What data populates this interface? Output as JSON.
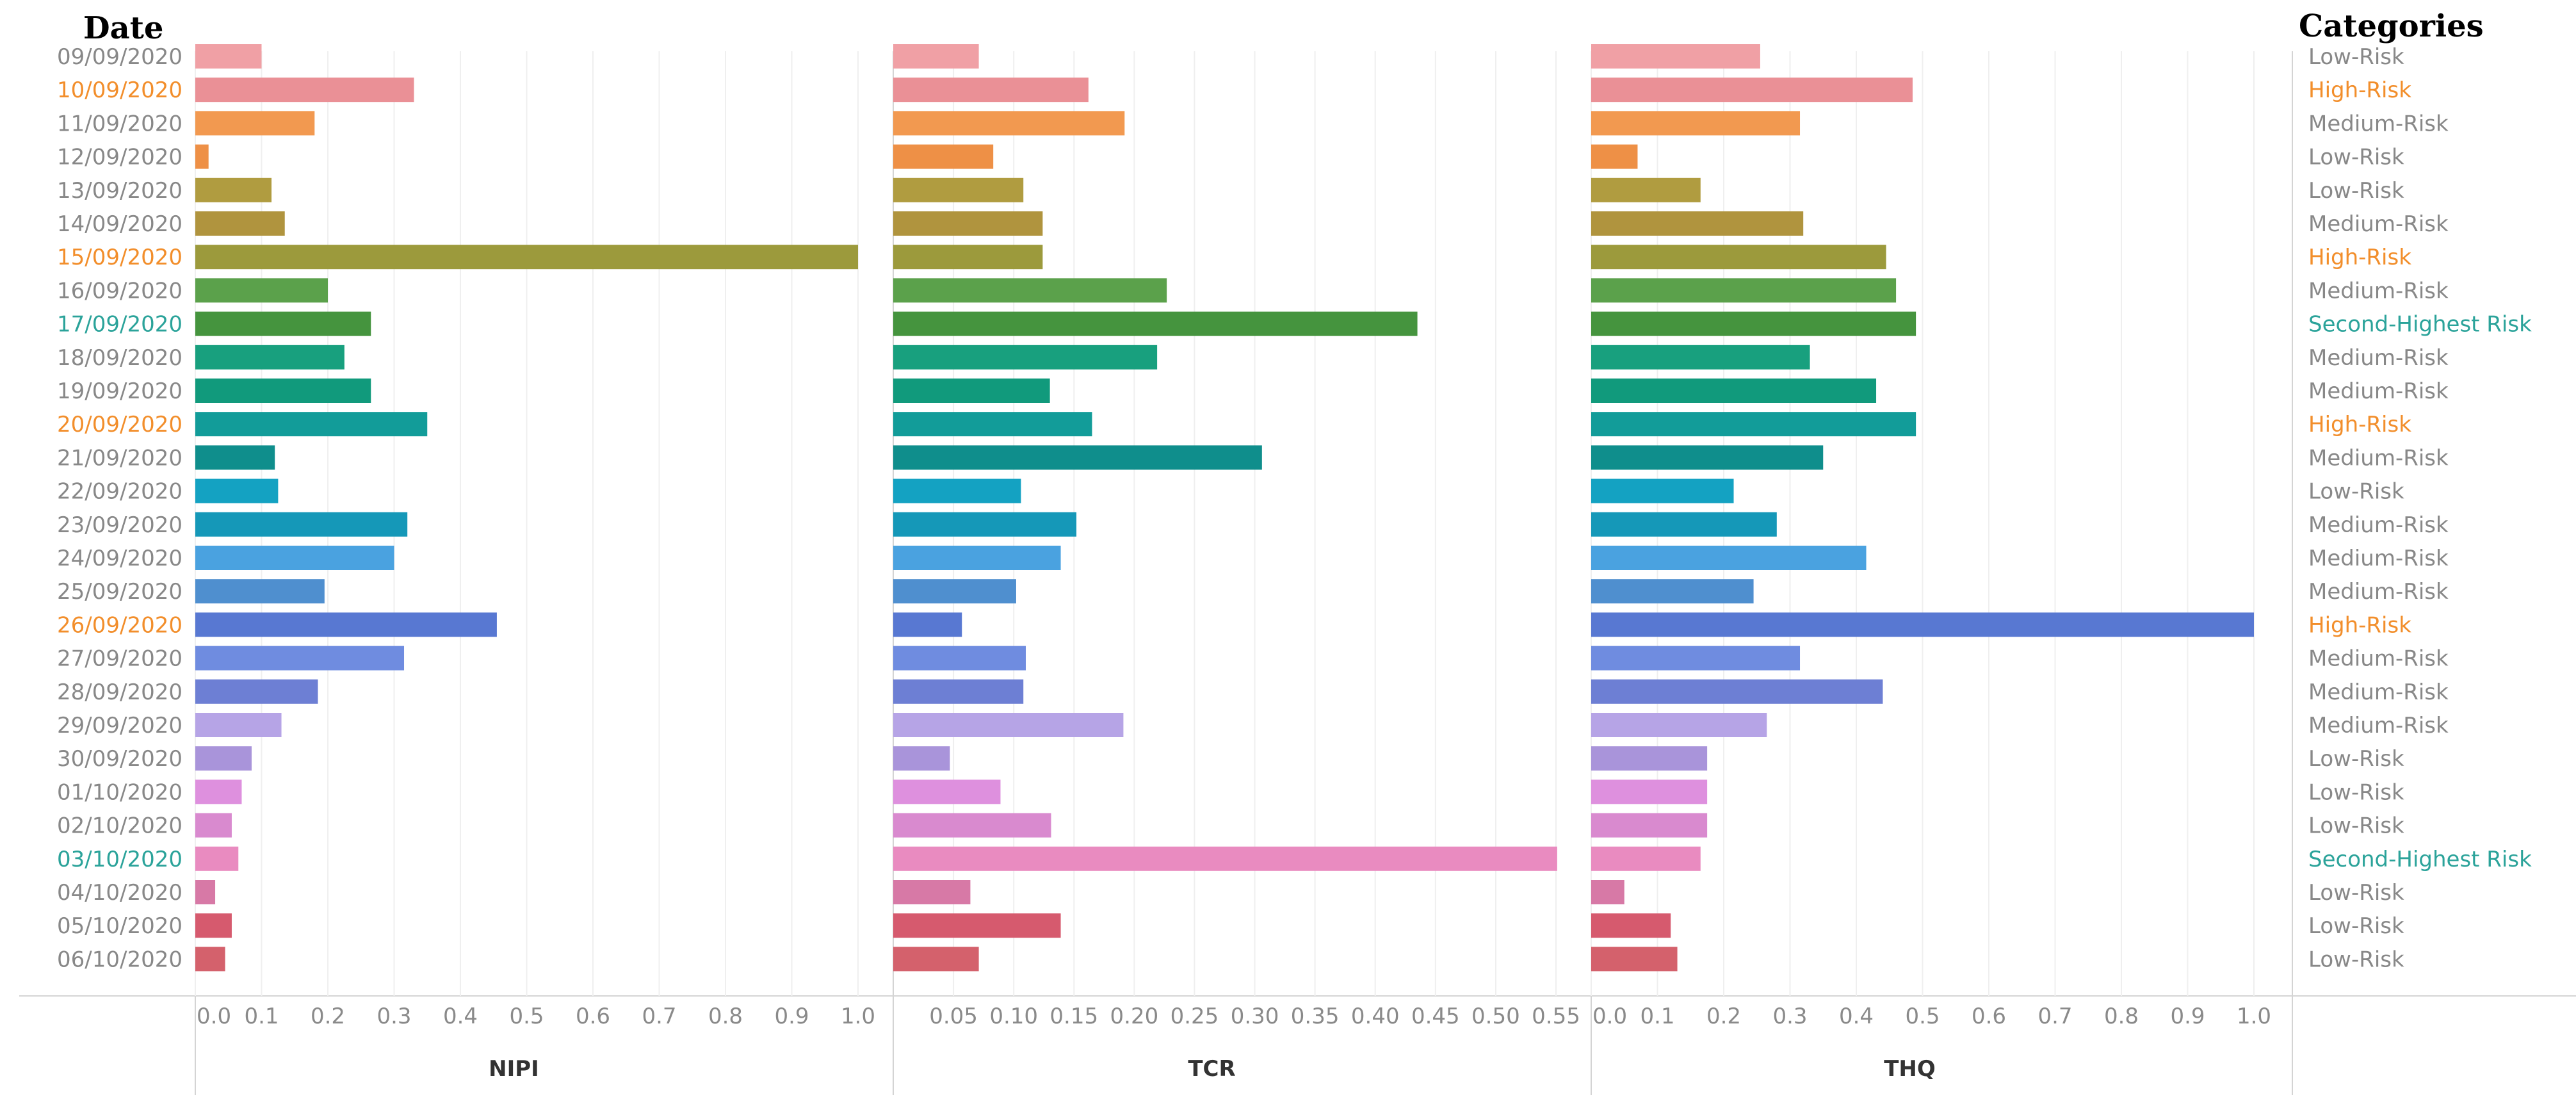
{
  "header": {
    "date_title": "Date",
    "categories_title": "Categories"
  },
  "colors": {
    "low": "#888888",
    "medium": "#888888",
    "high": "#F28E2B",
    "second": "#2BA39A",
    "bars": [
      "#F0A0A5",
      "#EA9096",
      "#F29950",
      "#EE9046",
      "#B09C40",
      "#B0943E",
      "#9C9A3C",
      "#5BA14B",
      "#45943E",
      "#18A07E",
      "#119A7C",
      "#129C99",
      "#0F8E8C",
      "#14A2C2",
      "#1598B8",
      "#4AA2E0",
      "#4F8FCF",
      "#5878D2",
      "#6F8CE0",
      "#6D7FD4",
      "#B6A4E6",
      "#A994DA",
      "#DE90DE",
      "#D98ACF",
      "#E98BC0",
      "#D779A6",
      "#D65A6E",
      "#D4616C"
    ]
  },
  "rows": [
    {
      "date": "09/09/2020",
      "category": "Low-Risk",
      "level": "low"
    },
    {
      "date": "10/09/2020",
      "category": "High-Risk",
      "level": "high"
    },
    {
      "date": "11/09/2020",
      "category": "Medium-Risk",
      "level": "medium"
    },
    {
      "date": "12/09/2020",
      "category": "Low-Risk",
      "level": "low"
    },
    {
      "date": "13/09/2020",
      "category": "Low-Risk",
      "level": "low"
    },
    {
      "date": "14/09/2020",
      "category": "Medium-Risk",
      "level": "medium"
    },
    {
      "date": "15/09/2020",
      "category": "High-Risk",
      "level": "high"
    },
    {
      "date": "16/09/2020",
      "category": "Medium-Risk",
      "level": "medium"
    },
    {
      "date": "17/09/2020",
      "category": "Second-Highest Risk",
      "level": "second"
    },
    {
      "date": "18/09/2020",
      "category": "Medium-Risk",
      "level": "medium"
    },
    {
      "date": "19/09/2020",
      "category": "Medium-Risk",
      "level": "medium"
    },
    {
      "date": "20/09/2020",
      "category": "High-Risk",
      "level": "high"
    },
    {
      "date": "21/09/2020",
      "category": "Medium-Risk",
      "level": "medium"
    },
    {
      "date": "22/09/2020",
      "category": "Low-Risk",
      "level": "low"
    },
    {
      "date": "23/09/2020",
      "category": "Medium-Risk",
      "level": "medium"
    },
    {
      "date": "24/09/2020",
      "category": "Medium-Risk",
      "level": "medium"
    },
    {
      "date": "25/09/2020",
      "category": "Medium-Risk",
      "level": "medium"
    },
    {
      "date": "26/09/2020",
      "category": "High-Risk",
      "level": "high"
    },
    {
      "date": "27/09/2020",
      "category": "Medium-Risk",
      "level": "medium"
    },
    {
      "date": "28/09/2020",
      "category": "Medium-Risk",
      "level": "medium"
    },
    {
      "date": "29/09/2020",
      "category": "Medium-Risk",
      "level": "medium"
    },
    {
      "date": "30/09/2020",
      "category": "Low-Risk",
      "level": "low"
    },
    {
      "date": "01/10/2020",
      "category": "Low-Risk",
      "level": "low"
    },
    {
      "date": "02/10/2020",
      "category": "Low-Risk",
      "level": "low"
    },
    {
      "date": "03/10/2020",
      "category": "Second-Highest Risk",
      "level": "second"
    },
    {
      "date": "04/10/2020",
      "category": "Low-Risk",
      "level": "low"
    },
    {
      "date": "05/10/2020",
      "category": "Low-Risk",
      "level": "low"
    },
    {
      "date": "06/10/2020",
      "category": "Low-Risk",
      "level": "low"
    }
  ],
  "chart_data": {
    "type": "bar",
    "orientation": "horizontal",
    "categories": [
      "09/09/2020",
      "10/09/2020",
      "11/09/2020",
      "12/09/2020",
      "13/09/2020",
      "14/09/2020",
      "15/09/2020",
      "16/09/2020",
      "17/09/2020",
      "18/09/2020",
      "19/09/2020",
      "20/09/2020",
      "21/09/2020",
      "22/09/2020",
      "23/09/2020",
      "24/09/2020",
      "25/09/2020",
      "26/09/2020",
      "27/09/2020",
      "28/09/2020",
      "29/09/2020",
      "30/09/2020",
      "01/10/2020",
      "02/10/2020",
      "03/10/2020",
      "04/10/2020",
      "05/10/2020",
      "06/10/2020"
    ],
    "ylabel": "Date",
    "panels": [
      {
        "name": "NIPI",
        "xlabel": "NIPI",
        "xlim": [
          0,
          1.0
        ],
        "ticks": [
          0.0,
          0.1,
          0.2,
          0.3,
          0.4,
          0.5,
          0.6,
          0.7,
          0.8,
          0.9,
          1.0
        ],
        "tick_labels": [
          "0.0",
          "0.1",
          "0.2",
          "0.3",
          "0.4",
          "0.5",
          "0.6",
          "0.7",
          "0.8",
          "0.9",
          "1.0"
        ],
        "values": [
          0.1,
          0.33,
          0.18,
          0.02,
          0.115,
          0.135,
          1.0,
          0.2,
          0.265,
          0.225,
          0.265,
          0.35,
          0.12,
          0.125,
          0.32,
          0.3,
          0.195,
          0.455,
          0.315,
          0.185,
          0.13,
          0.085,
          0.07,
          0.055,
          0.065,
          0.03,
          0.055,
          0.045
        ]
      },
      {
        "name": "TCR",
        "xlabel": "TCR",
        "xlim": [
          0,
          0.55
        ],
        "ticks": [
          0.05,
          0.1,
          0.15,
          0.2,
          0.25,
          0.3,
          0.35,
          0.4,
          0.45,
          0.5,
          0.55
        ],
        "tick_labels": [
          "0.05",
          "0.10",
          "0.15",
          "0.20",
          "0.25",
          "0.30",
          "0.35",
          "0.40",
          "0.45",
          "0.50",
          "0.55"
        ],
        "values": [
          0.071,
          0.162,
          0.192,
          0.083,
          0.108,
          0.124,
          0.124,
          0.227,
          0.435,
          0.219,
          0.13,
          0.165,
          0.306,
          0.106,
          0.152,
          0.139,
          0.102,
          0.057,
          0.11,
          0.108,
          0.191,
          0.047,
          0.089,
          0.131,
          0.551,
          0.064,
          0.139,
          0.071
        ]
      },
      {
        "name": "THQ",
        "xlabel": "THQ",
        "xlim": [
          0,
          1.0
        ],
        "ticks": [
          0.0,
          0.1,
          0.2,
          0.3,
          0.4,
          0.5,
          0.6,
          0.7,
          0.8,
          0.9,
          1.0
        ],
        "tick_labels": [
          "0.0",
          "0.1",
          "0.2",
          "0.3",
          "0.4",
          "0.5",
          "0.6",
          "0.7",
          "0.8",
          "0.9",
          "1.0"
        ],
        "values": [
          0.255,
          0.485,
          0.315,
          0.07,
          0.165,
          0.32,
          0.445,
          0.46,
          0.49,
          0.33,
          0.43,
          0.49,
          0.35,
          0.215,
          0.28,
          0.415,
          0.245,
          1.0,
          0.315,
          0.44,
          0.265,
          0.175,
          0.175,
          0.175,
          0.165,
          0.05,
          0.12,
          0.13
        ]
      }
    ]
  }
}
